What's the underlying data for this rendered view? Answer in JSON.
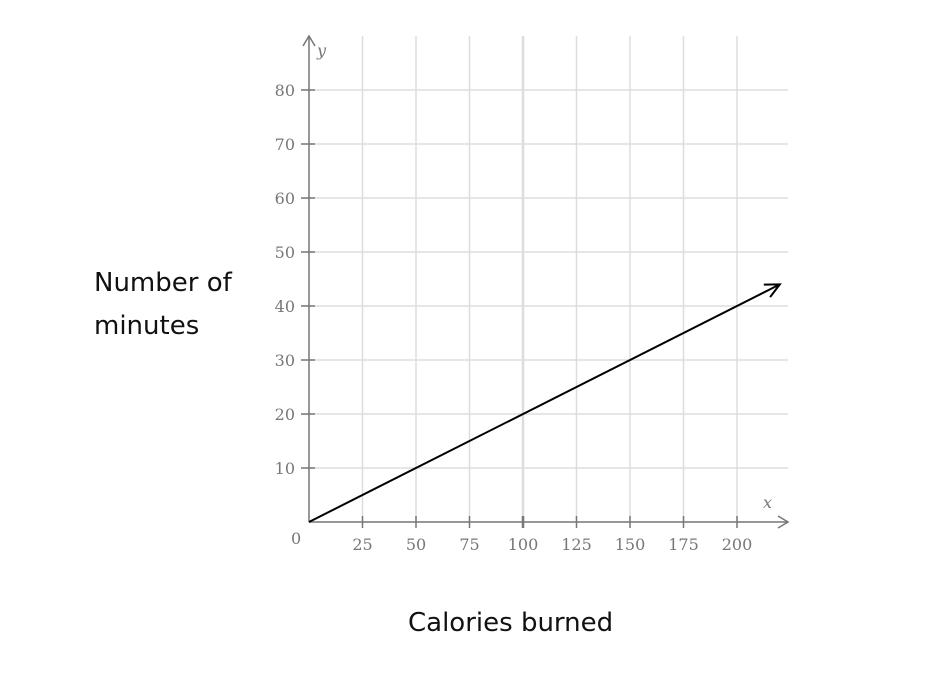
{
  "chart_data": {
    "type": "line",
    "xlabel": "Calories burned",
    "ylabel_lines": [
      "Number of",
      "minutes"
    ],
    "x_axis_var": "x",
    "y_axis_var": "y",
    "origin_label": "0",
    "xlim": [
      0,
      225
    ],
    "ylim": [
      0,
      88
    ],
    "x_ticks": [
      25,
      50,
      75,
      100,
      125,
      150,
      175,
      200
    ],
    "y_ticks": [
      10,
      20,
      30,
      40,
      50,
      60,
      70,
      80
    ],
    "grid": true,
    "series": [
      {
        "x": [
          0,
          220
        ],
        "y": [
          0,
          44
        ],
        "arrow_end": true
      }
    ],
    "colors": {
      "grid": "#dddddd",
      "axis": "#777777",
      "line": "#000000"
    }
  }
}
